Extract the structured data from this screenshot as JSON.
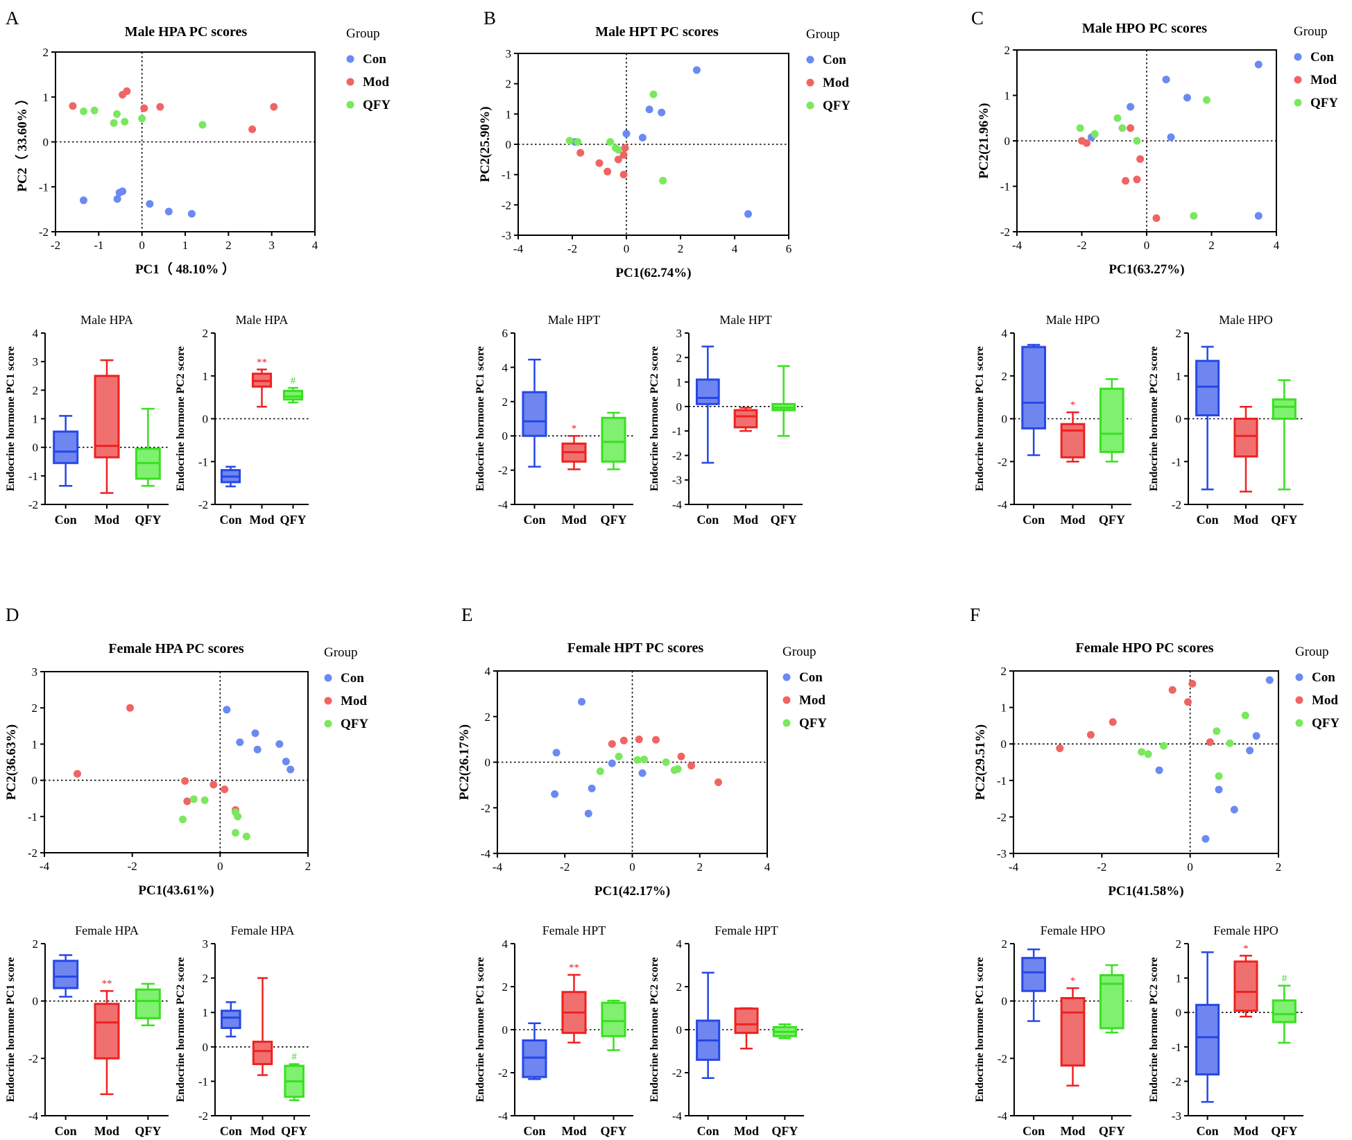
{
  "colors": {
    "Con": "#6a8af2",
    "Mod": "#f06464",
    "QFY": "#7ae85e"
  },
  "box_colors": {
    "Con": "#2547e8",
    "Mod": "#f02020",
    "QFY": "#38e020"
  },
  "box_fill": {
    "Con": "#6f86f0",
    "Mod": "#f07070",
    "QFY": "#80f070"
  },
  "legend": {
    "title": "Group",
    "groups": [
      "Con",
      "Mod",
      "QFY"
    ]
  },
  "chart_data": [
    {
      "type": "scatter",
      "panel": "A",
      "title": "Male HPA PC scores",
      "xlabel": "PC1（ 48.10% ）",
      "ylabel": "PC2（ 33.60% ）",
      "xlim": [
        -2,
        4
      ],
      "ylim": [
        -2,
        2
      ],
      "xticks": [
        "-2",
        "-1",
        "0",
        "1",
        "2",
        "3",
        "4"
      ],
      "yticks": [
        "-2",
        "-1",
        "0",
        "1",
        "2"
      ],
      "series": [
        {
          "name": "Con",
          "x": [
            -1.35,
            -0.57,
            -0.52,
            -0.45,
            0.18,
            0.62,
            1.15
          ],
          "y": [
            -1.3,
            -1.27,
            -1.13,
            -1.1,
            -1.38,
            -1.55,
            -1.6
          ]
        },
        {
          "name": "Mod",
          "x": [
            -1.6,
            -0.45,
            -0.35,
            0.05,
            0.42,
            2.55,
            3.05
          ],
          "y": [
            0.8,
            1.05,
            1.13,
            0.75,
            0.78,
            0.28,
            0.78
          ]
        },
        {
          "name": "QFY",
          "x": [
            -1.35,
            -1.1,
            -0.65,
            -0.58,
            -0.4,
            0.0,
            1.4
          ],
          "y": [
            0.68,
            0.7,
            0.42,
            0.62,
            0.45,
            0.52,
            0.38
          ]
        }
      ]
    },
    {
      "type": "box",
      "panel": "A",
      "title": "Male HPA",
      "ylabel": "Endocrine hormone PC1 score",
      "ylim": [
        -2,
        4
      ],
      "yticks": [
        "-2",
        "-1",
        "0",
        "1",
        "2",
        "3",
        "4"
      ],
      "categories": [
        "Con",
        "Mod",
        "QFY"
      ],
      "boxes": [
        [
          -1.35,
          -0.55,
          -0.15,
          0.55,
          1.1
        ],
        [
          -1.6,
          -0.35,
          0.05,
          2.5,
          3.05
        ],
        [
          -1.35,
          -1.1,
          -0.55,
          -0.05,
          1.35
        ]
      ],
      "annotations": [
        "",
        "",
        ""
      ]
    },
    {
      "type": "box",
      "panel": "A",
      "title": "Male HPA",
      "ylabel": "Endocrine hormone PC2 score",
      "ylim": [
        -2,
        2
      ],
      "yticks": [
        "-2",
        "-1",
        "0",
        "1",
        "2"
      ],
      "categories": [
        "Con",
        "Mod",
        "QFY"
      ],
      "boxes": [
        [
          -1.58,
          -1.48,
          -1.35,
          -1.2,
          -1.12
        ],
        [
          0.28,
          0.75,
          0.88,
          1.05,
          1.15
        ],
        [
          0.38,
          0.45,
          0.52,
          0.65,
          0.72
        ]
      ],
      "annotations": [
        "",
        "**",
        "#"
      ]
    },
    {
      "type": "scatter",
      "panel": "B",
      "title": "Male HPT PC scores",
      "xlabel": "PC1(62.74%)",
      "ylabel": "PC2(25.90%)",
      "xlim": [
        -4,
        6
      ],
      "ylim": [
        -3,
        3
      ],
      "xticks": [
        "-4",
        "-2",
        "0",
        "2",
        "4",
        "6"
      ],
      "yticks": [
        "-3",
        "-2",
        "-1",
        "0",
        "1",
        "2",
        "3"
      ],
      "series": [
        {
          "name": "Con",
          "x": [
            -1.9,
            0.0,
            0.6,
            0.85,
            1.3,
            2.6,
            4.5
          ],
          "y": [
            0.08,
            0.35,
            0.22,
            1.15,
            1.05,
            2.45,
            -2.3
          ]
        },
        {
          "name": "Mod",
          "x": [
            -1.7,
            -1.0,
            -0.7,
            -0.3,
            -0.1,
            -0.05,
            -0.1
          ],
          "y": [
            -0.28,
            -0.62,
            -0.9,
            -0.5,
            -1.0,
            -0.12,
            -0.35
          ]
        },
        {
          "name": "QFY",
          "x": [
            -2.1,
            -1.8,
            -0.6,
            -0.4,
            -0.3,
            1.0,
            1.35
          ],
          "y": [
            0.12,
            0.08,
            0.08,
            -0.12,
            -0.18,
            1.65,
            -1.2
          ]
        }
      ]
    },
    {
      "type": "box",
      "panel": "B",
      "title": "Male HPT",
      "ylabel": "Endocrine hormone PC1 score",
      "ylim": [
        -4,
        6
      ],
      "yticks": [
        "-4",
        "-2",
        "0",
        "2",
        "4",
        "6"
      ],
      "categories": [
        "Con",
        "Mod",
        "QFY"
      ],
      "boxes": [
        [
          -1.8,
          0.0,
          0.85,
          2.55,
          4.45
        ],
        [
          -1.95,
          -1.5,
          -0.95,
          -0.45,
          0.0
        ],
        [
          -1.95,
          -1.5,
          -0.35,
          1.05,
          1.35
        ]
      ],
      "annotations": [
        "",
        "*",
        ""
      ]
    },
    {
      "type": "box",
      "panel": "B",
      "title": "Male HPT",
      "ylabel": "Endocrine hormone PC2 score",
      "ylim": [
        -4,
        3
      ],
      "yticks": [
        "-4",
        "-3",
        "-2",
        "-1",
        "0",
        "1",
        "2",
        "3"
      ],
      "categories": [
        "Con",
        "Mod",
        "QFY"
      ],
      "boxes": [
        [
          -2.3,
          0.1,
          0.35,
          1.1,
          2.45
        ],
        [
          -1.0,
          -0.85,
          -0.4,
          -0.15,
          -0.05
        ],
        [
          -1.2,
          -0.15,
          -0.05,
          0.1,
          1.65
        ]
      ],
      "annotations": [
        "",
        "",
        ""
      ]
    },
    {
      "type": "scatter",
      "panel": "C",
      "title": "Male HPO PC scores",
      "xlabel": "PC1(63.27%)",
      "ylabel": "PC2(21.96%)",
      "xlim": [
        -4,
        4
      ],
      "ylim": [
        -2,
        2
      ],
      "xticks": [
        "-4",
        "-2",
        "0",
        "2",
        "4"
      ],
      "yticks": [
        "-2",
        "-1",
        "0",
        "1",
        "2"
      ],
      "series": [
        {
          "name": "Con",
          "x": [
            -1.7,
            -0.5,
            0.6,
            0.75,
            1.25,
            3.45,
            3.45
          ],
          "y": [
            0.08,
            0.75,
            1.35,
            0.08,
            0.95,
            1.68,
            -1.65
          ]
        },
        {
          "name": "Mod",
          "x": [
            -2.0,
            -1.85,
            -0.65,
            -0.5,
            -0.3,
            -0.2,
            0.3
          ],
          "y": [
            0.0,
            -0.05,
            -0.88,
            0.28,
            -0.85,
            -0.4,
            -1.7
          ]
        },
        {
          "name": "QFY",
          "x": [
            -2.05,
            -1.6,
            -0.9,
            -0.75,
            -0.3,
            1.45,
            1.85
          ],
          "y": [
            0.28,
            0.15,
            0.5,
            0.28,
            0.0,
            -1.65,
            0.9
          ]
        }
      ]
    },
    {
      "type": "box",
      "panel": "C",
      "title": "Male HPO",
      "ylabel": "Endocrine hormone PC1 score",
      "ylim": [
        -4,
        4
      ],
      "yticks": [
        "-4",
        "-2",
        "0",
        "2",
        "4"
      ],
      "categories": [
        "Con",
        "Mod",
        "QFY"
      ],
      "boxes": [
        [
          -1.7,
          -0.45,
          0.75,
          3.35,
          3.45
        ],
        [
          -2.0,
          -1.8,
          -0.55,
          -0.25,
          0.3
        ],
        [
          -2.0,
          -1.55,
          -0.7,
          1.4,
          1.85
        ]
      ],
      "annotations": [
        "",
        "*",
        ""
      ]
    },
    {
      "type": "box",
      "panel": "C",
      "title": "Male HPO",
      "ylabel": "Endocrine hormone PC2 score",
      "ylim": [
        -2,
        2
      ],
      "yticks": [
        "-2",
        "-1",
        "0",
        "1",
        "2"
      ],
      "categories": [
        "Con",
        "Mod",
        "QFY"
      ],
      "boxes": [
        [
          -1.65,
          0.08,
          0.75,
          1.35,
          1.68
        ],
        [
          -1.7,
          -0.88,
          -0.4,
          0.0,
          0.28
        ],
        [
          -1.65,
          0.0,
          0.28,
          0.45,
          0.9
        ]
      ],
      "annotations": [
        "",
        "",
        ""
      ]
    },
    {
      "type": "scatter",
      "panel": "D",
      "title": "Female HPA PC scores",
      "xlabel": "PC1(43.61%)",
      "ylabel": "PC2(36.63%)",
      "xlim": [
        -4,
        2
      ],
      "ylim": [
        -2,
        3
      ],
      "xticks": [
        "-4",
        "-2",
        "0",
        "2"
      ],
      "yticks": [
        "-2",
        "-1",
        "0",
        "1",
        "2",
        "3"
      ],
      "series": [
        {
          "name": "Con",
          "x": [
            0.15,
            0.45,
            0.8,
            0.85,
            1.35,
            1.5,
            1.6
          ],
          "y": [
            1.95,
            1.05,
            1.3,
            0.85,
            1.0,
            0.52,
            0.3
          ]
        },
        {
          "name": "Mod",
          "x": [
            -3.25,
            -2.05,
            -0.8,
            -0.75,
            -0.15,
            0.1,
            0.35
          ],
          "y": [
            0.18,
            2.0,
            -0.02,
            -0.58,
            -0.12,
            -0.25,
            -0.82
          ]
        },
        {
          "name": "QFY",
          "x": [
            -0.85,
            -0.6,
            -0.35,
            0.35,
            0.4,
            0.35,
            0.6
          ],
          "y": [
            -1.08,
            -0.52,
            -0.55,
            -0.88,
            -1.0,
            -1.45,
            -1.55
          ]
        }
      ]
    },
    {
      "type": "box",
      "panel": "D",
      "title": "Female HPA",
      "ylabel": "Endocrine hormone PC1 score",
      "ylim": [
        -4,
        2
      ],
      "yticks": [
        "-4",
        "-2",
        "0",
        "2"
      ],
      "categories": [
        "Con",
        "Mod",
        "QFY"
      ],
      "boxes": [
        [
          0.15,
          0.45,
          0.85,
          1.4,
          1.6
        ],
        [
          -3.25,
          -2.0,
          -0.75,
          -0.1,
          0.35
        ],
        [
          -0.85,
          -0.6,
          0.0,
          0.4,
          0.6
        ]
      ],
      "annotations": [
        "",
        "**",
        ""
      ]
    },
    {
      "type": "box",
      "panel": "D",
      "title": "Female HPA",
      "ylabel": "Endocrine hormone PC2 score",
      "ylim": [
        -2,
        3
      ],
      "yticks": [
        "-2",
        "-1",
        "0",
        "1",
        "2",
        "3"
      ],
      "categories": [
        "Con",
        "Mod",
        "QFY"
      ],
      "boxes": [
        [
          0.3,
          0.55,
          0.85,
          1.05,
          1.3
        ],
        [
          -0.82,
          -0.5,
          -0.12,
          0.15,
          2.0
        ],
        [
          -1.55,
          -1.45,
          -1.0,
          -0.55,
          -0.5
        ]
      ],
      "annotations": [
        "",
        "",
        "#"
      ]
    },
    {
      "type": "scatter",
      "panel": "E",
      "title": "Female HPT PC scores",
      "xlabel": "PC1(42.17%)",
      "ylabel": "PC2(26.17%)",
      "xlim": [
        -4,
        4
      ],
      "ylim": [
        -4,
        4
      ],
      "xticks": [
        "-4",
        "-2",
        "0",
        "2",
        "4"
      ],
      "yticks": [
        "-4",
        "-2",
        "0",
        "2",
        "4"
      ],
      "series": [
        {
          "name": "Con",
          "x": [
            -2.3,
            -2.25,
            -1.5,
            -1.3,
            -1.2,
            -0.6,
            0.3
          ],
          "y": [
            -1.4,
            0.42,
            2.65,
            -2.25,
            -1.15,
            -0.05,
            -0.48
          ]
        },
        {
          "name": "Mod",
          "x": [
            -0.6,
            -0.25,
            0.2,
            0.7,
            1.45,
            1.75,
            2.55
          ],
          "y": [
            0.8,
            0.95,
            1.0,
            0.98,
            0.25,
            -0.15,
            -0.88
          ]
        },
        {
          "name": "QFY",
          "x": [
            -0.95,
            -0.4,
            0.15,
            0.35,
            1.0,
            1.25,
            1.35
          ],
          "y": [
            -0.4,
            0.25,
            0.1,
            0.12,
            0.0,
            -0.35,
            -0.3
          ]
        }
      ]
    },
    {
      "type": "box",
      "panel": "E",
      "title": "Female HPT",
      "ylabel": "Endocrine hormone PC1 score",
      "ylim": [
        -4,
        4
      ],
      "yticks": [
        "-4",
        "-2",
        "0",
        "2",
        "4"
      ],
      "categories": [
        "Con",
        "Mod",
        "QFY"
      ],
      "boxes": [
        [
          -2.3,
          -2.2,
          -1.3,
          -0.5,
          0.3
        ],
        [
          -0.6,
          -0.15,
          0.8,
          1.75,
          2.55
        ],
        [
          -0.95,
          -0.3,
          0.4,
          1.25,
          1.35
        ]
      ],
      "annotations": [
        "",
        "**",
        ""
      ]
    },
    {
      "type": "box",
      "panel": "E",
      "title": "Female HPT",
      "ylabel": "Endocrine hormone PC2 score",
      "ylim": [
        -4,
        4
      ],
      "yticks": [
        "-4",
        "-2",
        "0",
        "2",
        "4"
      ],
      "categories": [
        "Con",
        "Mod",
        "QFY"
      ],
      "boxes": [
        [
          -2.25,
          -1.4,
          -0.5,
          0.42,
          2.65
        ],
        [
          -0.88,
          -0.15,
          0.25,
          0.98,
          1.0
        ],
        [
          -0.4,
          -0.3,
          -0.1,
          0.12,
          0.25
        ]
      ],
      "annotations": [
        "",
        "",
        ""
      ]
    },
    {
      "type": "scatter",
      "panel": "F",
      "title": "Female HPO PC scores",
      "xlabel": "PC1(41.58%)",
      "ylabel": "PC2(29.51%)",
      "xlim": [
        -4,
        2
      ],
      "ylim": [
        -3,
        2
      ],
      "xticks": [
        "-4",
        "-2",
        "0",
        "2"
      ],
      "yticks": [
        "-3",
        "-2",
        "-1",
        "0",
        "1",
        "2"
      ],
      "series": [
        {
          "name": "Con",
          "x": [
            -0.7,
            0.35,
            0.65,
            1.0,
            1.35,
            1.5,
            1.8
          ],
          "y": [
            -0.72,
            -2.6,
            -1.25,
            -1.8,
            -0.18,
            0.22,
            1.75
          ]
        },
        {
          "name": "Mod",
          "x": [
            -2.95,
            -2.25,
            -1.75,
            -0.4,
            -0.05,
            0.05,
            0.45
          ],
          "y": [
            -0.12,
            0.25,
            0.6,
            1.48,
            1.15,
            1.65,
            0.05
          ]
        },
        {
          "name": "QFY",
          "x": [
            -1.1,
            -0.95,
            -0.6,
            0.6,
            0.65,
            0.9,
            1.25
          ],
          "y": [
            -0.22,
            -0.28,
            -0.05,
            0.35,
            -0.88,
            0.02,
            0.78
          ]
        }
      ]
    },
    {
      "type": "box",
      "panel": "F",
      "title": "Female HPO",
      "ylabel": "Endocrine hormone PC1 score",
      "ylim": [
        -4,
        2
      ],
      "yticks": [
        "-4",
        "-2",
        "0",
        "2"
      ],
      "categories": [
        "Con",
        "Mod",
        "QFY"
      ],
      "boxes": [
        [
          -0.7,
          0.35,
          1.0,
          1.5,
          1.8
        ],
        [
          -2.95,
          -2.25,
          -0.4,
          0.1,
          0.45
        ],
        [
          -1.1,
          -0.95,
          0.6,
          0.9,
          1.25
        ]
      ],
      "annotations": [
        "",
        "*",
        ""
      ]
    },
    {
      "type": "box",
      "panel": "F",
      "title": "Female HPO",
      "ylabel": "Endocrine hormone PC2 score",
      "ylim": [
        -3,
        2
      ],
      "yticks": [
        "-3",
        "-2",
        "-1",
        "0",
        "1",
        "2"
      ],
      "categories": [
        "Con",
        "Mod",
        "QFY"
      ],
      "boxes": [
        [
          -2.6,
          -1.8,
          -0.72,
          0.22,
          1.75
        ],
        [
          -0.12,
          0.05,
          0.6,
          1.48,
          1.65
        ],
        [
          -0.88,
          -0.28,
          -0.05,
          0.35,
          0.78
        ]
      ],
      "annotations": [
        "",
        "*",
        "#"
      ]
    }
  ]
}
